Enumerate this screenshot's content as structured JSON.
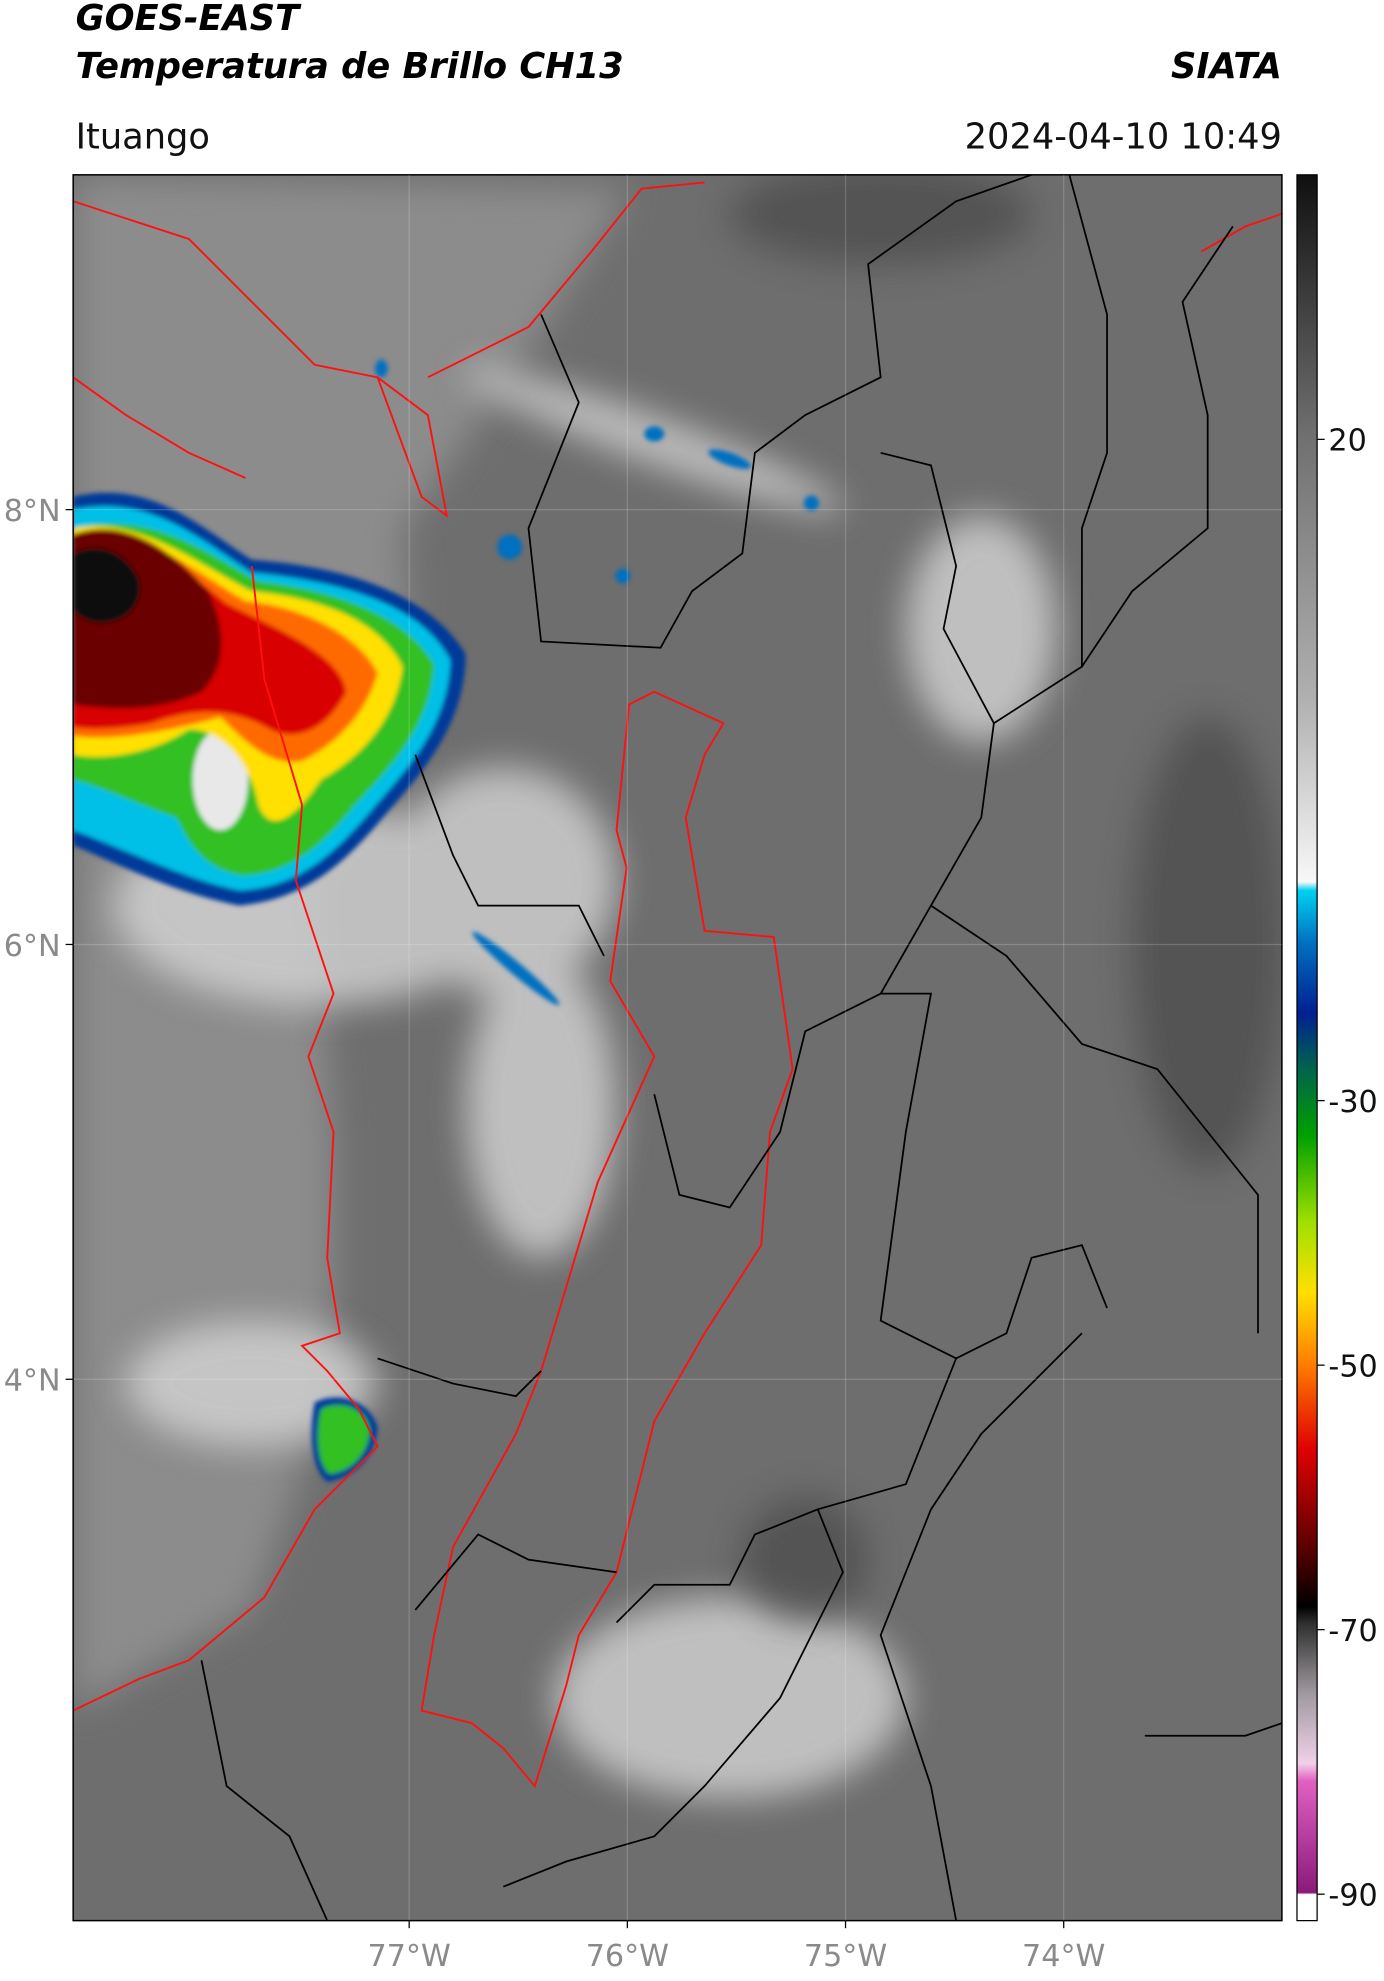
{
  "header": {
    "title": "GOES-EAST",
    "subtitle": "Temperatura de Brillo CH13",
    "source": "SIATA",
    "location": "Ituango",
    "datetime": "2024-04-10 10:49"
  },
  "map": {
    "xlim": [
      -78.54,
      -73.0
    ],
    "ylim": [
      1.51,
      9.54
    ],
    "grid": true,
    "xticks": [
      {
        "value": -77,
        "label": "77°W"
      },
      {
        "value": -76,
        "label": "76°W"
      },
      {
        "value": -75,
        "label": "75°W"
      },
      {
        "value": -74,
        "label": "74°W"
      }
    ],
    "yticks": [
      {
        "value": 8,
        "label": "8°N"
      },
      {
        "value": 6,
        "label": "6°N"
      },
      {
        "value": 4,
        "label": "4°N"
      }
    ]
  },
  "colorbar": {
    "lim": [
      -92,
      40
    ],
    "ticks": [
      20,
      -30,
      -50,
      -70,
      -90
    ]
  }
}
